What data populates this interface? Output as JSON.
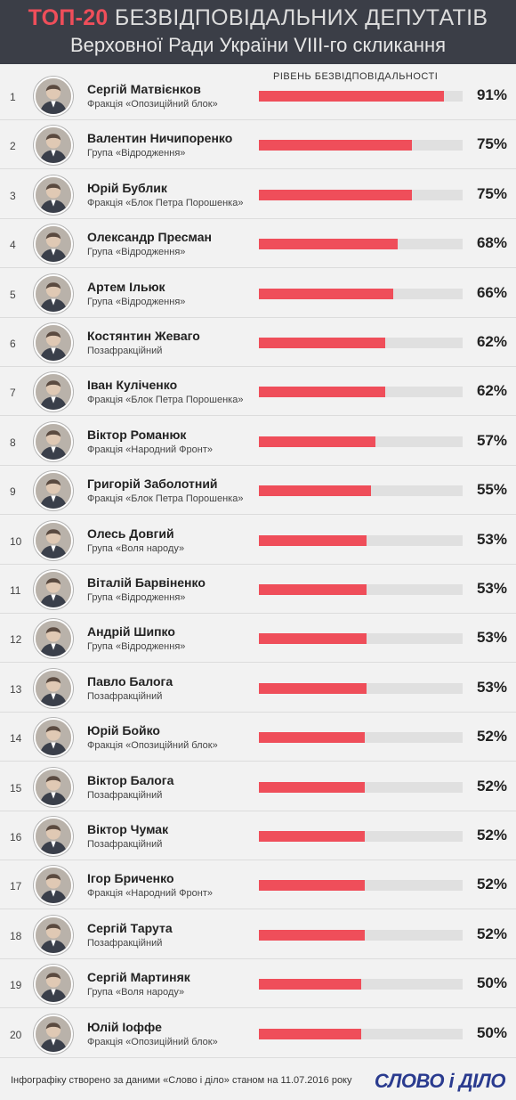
{
  "header": {
    "title_accent": "ТОП-20",
    "title_rest": "БЕЗВІДПОВІДАЛЬНИХ ДЕПУТАТІВ",
    "subtitle": "Верховної Ради України VIII-го скликання"
  },
  "chart_data": {
    "type": "bar",
    "title": "ТОП-20 БЕЗВІДПОВІДАЛЬНИХ ДЕПУТАТІВ Верховної Ради України VIII-го скликання",
    "value_label": "РІВЕНЬ БЕЗВІДПОВІДАЛЬНОСТІ",
    "xlim": [
      0,
      100
    ],
    "rows": [
      {
        "rank": "1",
        "name": "Сергій Матвієнков",
        "faction": "Фракція «Опозиційний блок»",
        "value": 91,
        "label": "91%"
      },
      {
        "rank": "2",
        "name": "Валентин Ничипоренко",
        "faction": "Група «Відродження»",
        "value": 75,
        "label": "75%"
      },
      {
        "rank": "3",
        "name": "Юрій Бублик",
        "faction": "Фракція «Блок Петра Порошенка»",
        "value": 75,
        "label": "75%"
      },
      {
        "rank": "4",
        "name": "Олександр Пресман",
        "faction": "Група «Відродження»",
        "value": 68,
        "label": "68%"
      },
      {
        "rank": "5",
        "name": "Артем Ільюк",
        "faction": "Група «Відродження»",
        "value": 66,
        "label": "66%"
      },
      {
        "rank": "6",
        "name": "Костянтин Жеваго",
        "faction": "Позафракційний",
        "value": 62,
        "label": "62%"
      },
      {
        "rank": "7",
        "name": "Іван Куліченко",
        "faction": "Фракція «Блок Петра Порошенка»",
        "value": 62,
        "label": "62%"
      },
      {
        "rank": "8",
        "name": "Віктор Романюк",
        "faction": "Фракція «Народний Фронт»",
        "value": 57,
        "label": "57%"
      },
      {
        "rank": "9",
        "name": "Григорій Заболотний",
        "faction": "Фракція «Блок Петра Порошенка»",
        "value": 55,
        "label": "55%"
      },
      {
        "rank": "10",
        "name": "Олесь Довгий",
        "faction": "Група «Воля народу»",
        "value": 53,
        "label": "53%"
      },
      {
        "rank": "11",
        "name": "Віталій Барвіненко",
        "faction": "Група «Відродження»",
        "value": 53,
        "label": "53%"
      },
      {
        "rank": "12",
        "name": "Андрій Шипко",
        "faction": "Група «Відродження»",
        "value": 53,
        "label": "53%"
      },
      {
        "rank": "13",
        "name": "Павло Балога",
        "faction": "Позафракційний",
        "value": 53,
        "label": "53%"
      },
      {
        "rank": "14",
        "name": "Юрій Бойко",
        "faction": "Фракція «Опозиційний блок»",
        "value": 52,
        "label": "52%"
      },
      {
        "rank": "15",
        "name": "Віктор Балога",
        "faction": "Позафракційний",
        "value": 52,
        "label": "52%"
      },
      {
        "rank": "16",
        "name": "Віктор Чумак",
        "faction": "Позафракційний",
        "value": 52,
        "label": "52%"
      },
      {
        "rank": "17",
        "name": "Ігор Бриченко",
        "faction": "Фракція «Народний Фронт»",
        "value": 52,
        "label": "52%"
      },
      {
        "rank": "18",
        "name": "Сергій Тарута",
        "faction": "Позафракційний",
        "value": 52,
        "label": "52%"
      },
      {
        "rank": "19",
        "name": "Сергій Мартиняк",
        "faction": "Група «Воля народу»",
        "value": 50,
        "label": "50%"
      },
      {
        "rank": "20",
        "name": "Юлій Іоффе",
        "faction": "Фракція «Опозиційний блок»",
        "value": 50,
        "label": "50%"
      }
    ],
    "colors": {
      "bar": "#ef4e5a",
      "track": "#e0e0e0",
      "header_bg": "#3b3e47"
    }
  },
  "footer": {
    "source": "Інфографіку створено за даними «Слово і діло» станом на 11.07.2016 року",
    "logo": "СЛОВО і ДІЛО"
  }
}
